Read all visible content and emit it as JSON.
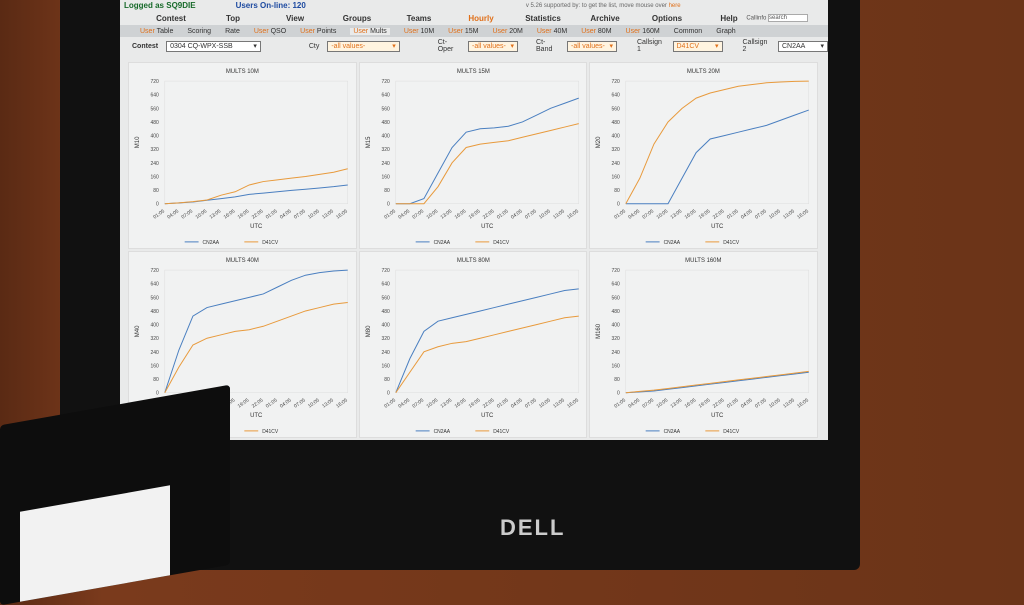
{
  "header": {
    "logged_as": "Logged as SQ9DIE",
    "users_online": "Users On-line: 120",
    "version_text": "v 5.26 supported by: to get the list, move mouse over",
    "version_link": "here"
  },
  "menu": [
    "Contest",
    "Top",
    "View",
    "Groups",
    "Teams",
    "Hourly",
    "Statistics",
    "Archive",
    "Options",
    "Help",
    "User"
  ],
  "menu_active": "Hourly",
  "submenu": [
    {
      "u": "User",
      "t": " Table"
    },
    {
      "u": "",
      "t": "Scoring"
    },
    {
      "u": "",
      "t": "Rate"
    },
    {
      "u": "User",
      "t": " QSO"
    },
    {
      "u": "User",
      "t": " Points"
    },
    {
      "u": "User",
      "t": " Mults"
    },
    {
      "u": "User",
      "t": " 10M"
    },
    {
      "u": "User",
      "t": " 15M"
    },
    {
      "u": "User",
      "t": " 20M"
    },
    {
      "u": "User",
      "t": " 40M"
    },
    {
      "u": "User",
      "t": " 80M"
    },
    {
      "u": "User",
      "t": " 160M"
    },
    {
      "u": "",
      "t": "Common"
    },
    {
      "u": "",
      "t": "Graph"
    }
  ],
  "filters": {
    "contest_label": "Contest",
    "contest_value": "0304 CQ-WPX-SSB",
    "cty_label": "Cty",
    "cty_value": "-all values-",
    "ctoper_label": "Ct-Oper",
    "ctoper_value": "-all values-",
    "ctband_label": "Ct-Band",
    "ctband_value": "-all values-",
    "call1_label": "Callsign 1",
    "call1_value": "D41CV",
    "call2_label": "Callsign 2",
    "call2_value": "CN2AA",
    "callinfo_label": "Callinfo",
    "search_placeholder": "search"
  },
  "colors": {
    "CN2AA": "#4a7fc0",
    "D41CV": "#e89a3c"
  },
  "chart_data": [
    {
      "type": "line",
      "title": "MULTS 10M",
      "ylabel": "M10",
      "xlabel": "UTC",
      "ylim": [
        0,
        720
      ],
      "yticks": [
        0,
        80,
        160,
        240,
        320,
        400,
        480,
        560,
        640,
        720
      ],
      "x": [
        "01:05",
        "04:05",
        "07:05",
        "10:05",
        "13:05",
        "16:05",
        "19:05",
        "22:05",
        "01:05",
        "04:05",
        "07:05",
        "10:05",
        "13:05",
        "16:05"
      ],
      "series": [
        {
          "name": "CN2AA",
          "values": [
            0,
            5,
            10,
            20,
            30,
            40,
            55,
            62,
            70,
            78,
            85,
            92,
            100,
            110
          ]
        },
        {
          "name": "D41CV",
          "values": [
            0,
            5,
            12,
            22,
            50,
            70,
            110,
            130,
            140,
            150,
            160,
            172,
            185,
            205
          ]
        }
      ]
    },
    {
      "type": "line",
      "title": "MULTS 15M",
      "ylabel": "M15",
      "xlabel": "UTC",
      "ylim": [
        0,
        720
      ],
      "yticks": [
        0,
        80,
        160,
        240,
        320,
        400,
        480,
        560,
        640,
        720
      ],
      "x": [
        "01:05",
        "04:05",
        "07:05",
        "10:05",
        "13:05",
        "16:05",
        "19:05",
        "22:05",
        "01:05",
        "04:05",
        "07:05",
        "10:05",
        "13:05",
        "16:05"
      ],
      "series": [
        {
          "name": "CN2AA",
          "values": [
            0,
            0,
            30,
            180,
            330,
            420,
            440,
            445,
            455,
            480,
            520,
            560,
            590,
            620
          ]
        },
        {
          "name": "D41CV",
          "values": [
            0,
            0,
            0,
            100,
            240,
            330,
            350,
            360,
            370,
            390,
            410,
            430,
            450,
            470
          ]
        }
      ]
    },
    {
      "type": "line",
      "title": "MULTS 20M",
      "ylabel": "M20",
      "xlabel": "UTC",
      "ylim": [
        0,
        720
      ],
      "yticks": [
        0,
        80,
        160,
        240,
        320,
        400,
        480,
        560,
        640,
        720
      ],
      "x": [
        "01:05",
        "04:05",
        "07:05",
        "10:05",
        "13:05",
        "16:05",
        "19:05",
        "22:05",
        "01:05",
        "04:05",
        "07:05",
        "10:05",
        "13:05",
        "16:05"
      ],
      "series": [
        {
          "name": "CN2AA",
          "values": [
            0,
            0,
            0,
            0,
            150,
            300,
            380,
            400,
            420,
            440,
            460,
            490,
            520,
            550
          ]
        },
        {
          "name": "D41CV",
          "values": [
            0,
            150,
            350,
            480,
            560,
            620,
            650,
            670,
            690,
            700,
            710,
            715,
            718,
            720
          ]
        }
      ]
    },
    {
      "type": "line",
      "title": "MULTS 40M",
      "ylabel": "M40",
      "xlabel": "UTC",
      "ylim": [
        0,
        720
      ],
      "yticks": [
        0,
        80,
        160,
        240,
        320,
        400,
        480,
        560,
        640,
        720
      ],
      "x": [
        "01:05",
        "04:05",
        "07:05",
        "10:05",
        "13:05",
        "16:05",
        "19:05",
        "22:05",
        "01:05",
        "04:05",
        "07:05",
        "10:05",
        "13:05",
        "16:05"
      ],
      "series": [
        {
          "name": "CN2AA",
          "values": [
            0,
            250,
            450,
            500,
            520,
            540,
            560,
            580,
            620,
            660,
            690,
            705,
            715,
            720
          ]
        },
        {
          "name": "D41CV",
          "values": [
            0,
            150,
            280,
            320,
            340,
            360,
            370,
            390,
            420,
            450,
            480,
            500,
            520,
            530
          ]
        }
      ]
    },
    {
      "type": "line",
      "title": "MULTS 80M",
      "ylabel": "M80",
      "xlabel": "UTC",
      "ylim": [
        0,
        720
      ],
      "yticks": [
        0,
        80,
        160,
        240,
        320,
        400,
        480,
        560,
        640,
        720
      ],
      "x": [
        "01:05",
        "04:05",
        "07:05",
        "10:05",
        "13:05",
        "16:05",
        "19:05",
        "22:05",
        "01:05",
        "04:05",
        "07:05",
        "10:05",
        "13:05",
        "16:05"
      ],
      "series": [
        {
          "name": "CN2AA",
          "values": [
            0,
            200,
            360,
            420,
            440,
            460,
            480,
            500,
            520,
            540,
            560,
            580,
            600,
            610
          ]
        },
        {
          "name": "D41CV",
          "values": [
            0,
            120,
            240,
            270,
            290,
            300,
            320,
            340,
            360,
            380,
            400,
            420,
            440,
            450
          ]
        }
      ]
    },
    {
      "type": "line",
      "title": "MULTS 160M",
      "ylabel": "M160",
      "xlabel": "UTC",
      "ylim": [
        0,
        720
      ],
      "yticks": [
        0,
        80,
        160,
        240,
        320,
        400,
        480,
        560,
        640,
        720
      ],
      "x": [
        "01:05",
        "04:05",
        "07:05",
        "10:05",
        "13:05",
        "16:05",
        "19:05",
        "22:05",
        "01:05",
        "04:05",
        "07:05",
        "10:05",
        "13:05",
        "16:05"
      ],
      "series": [
        {
          "name": "CN2AA",
          "values": [
            0,
            5,
            10,
            20,
            30,
            40,
            50,
            60,
            70,
            80,
            90,
            100,
            110,
            120
          ]
        },
        {
          "name": "D41CV",
          "values": [
            0,
            8,
            15,
            25,
            35,
            45,
            55,
            65,
            75,
            85,
            95,
            105,
            115,
            125
          ]
        }
      ]
    }
  ],
  "brand": "DELL"
}
